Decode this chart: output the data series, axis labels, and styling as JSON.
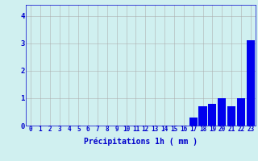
{
  "hours": [
    0,
    1,
    2,
    3,
    4,
    5,
    6,
    7,
    8,
    9,
    10,
    11,
    12,
    13,
    14,
    15,
    16,
    17,
    18,
    19,
    20,
    21,
    22,
    23
  ],
  "values": [
    0,
    0,
    0,
    0,
    0,
    0,
    0,
    0,
    0,
    0,
    0,
    0,
    0,
    0,
    0,
    0,
    0,
    0.3,
    0.7,
    0.8,
    1.0,
    0.7,
    1.0,
    3.1
  ],
  "bar_color": "#0000ee",
  "background_color": "#d0f0f0",
  "grid_color": "#aaaaaa",
  "axis_color": "#0000cc",
  "xlabel": "Précipitations 1h ( mm )",
  "xlabel_fontsize": 7,
  "tick_fontsize": 5.5,
  "ylim": [
    0,
    4.4
  ],
  "yticks": [
    0,
    1,
    2,
    3,
    4
  ],
  "xlim": [
    -0.5,
    23.5
  ]
}
